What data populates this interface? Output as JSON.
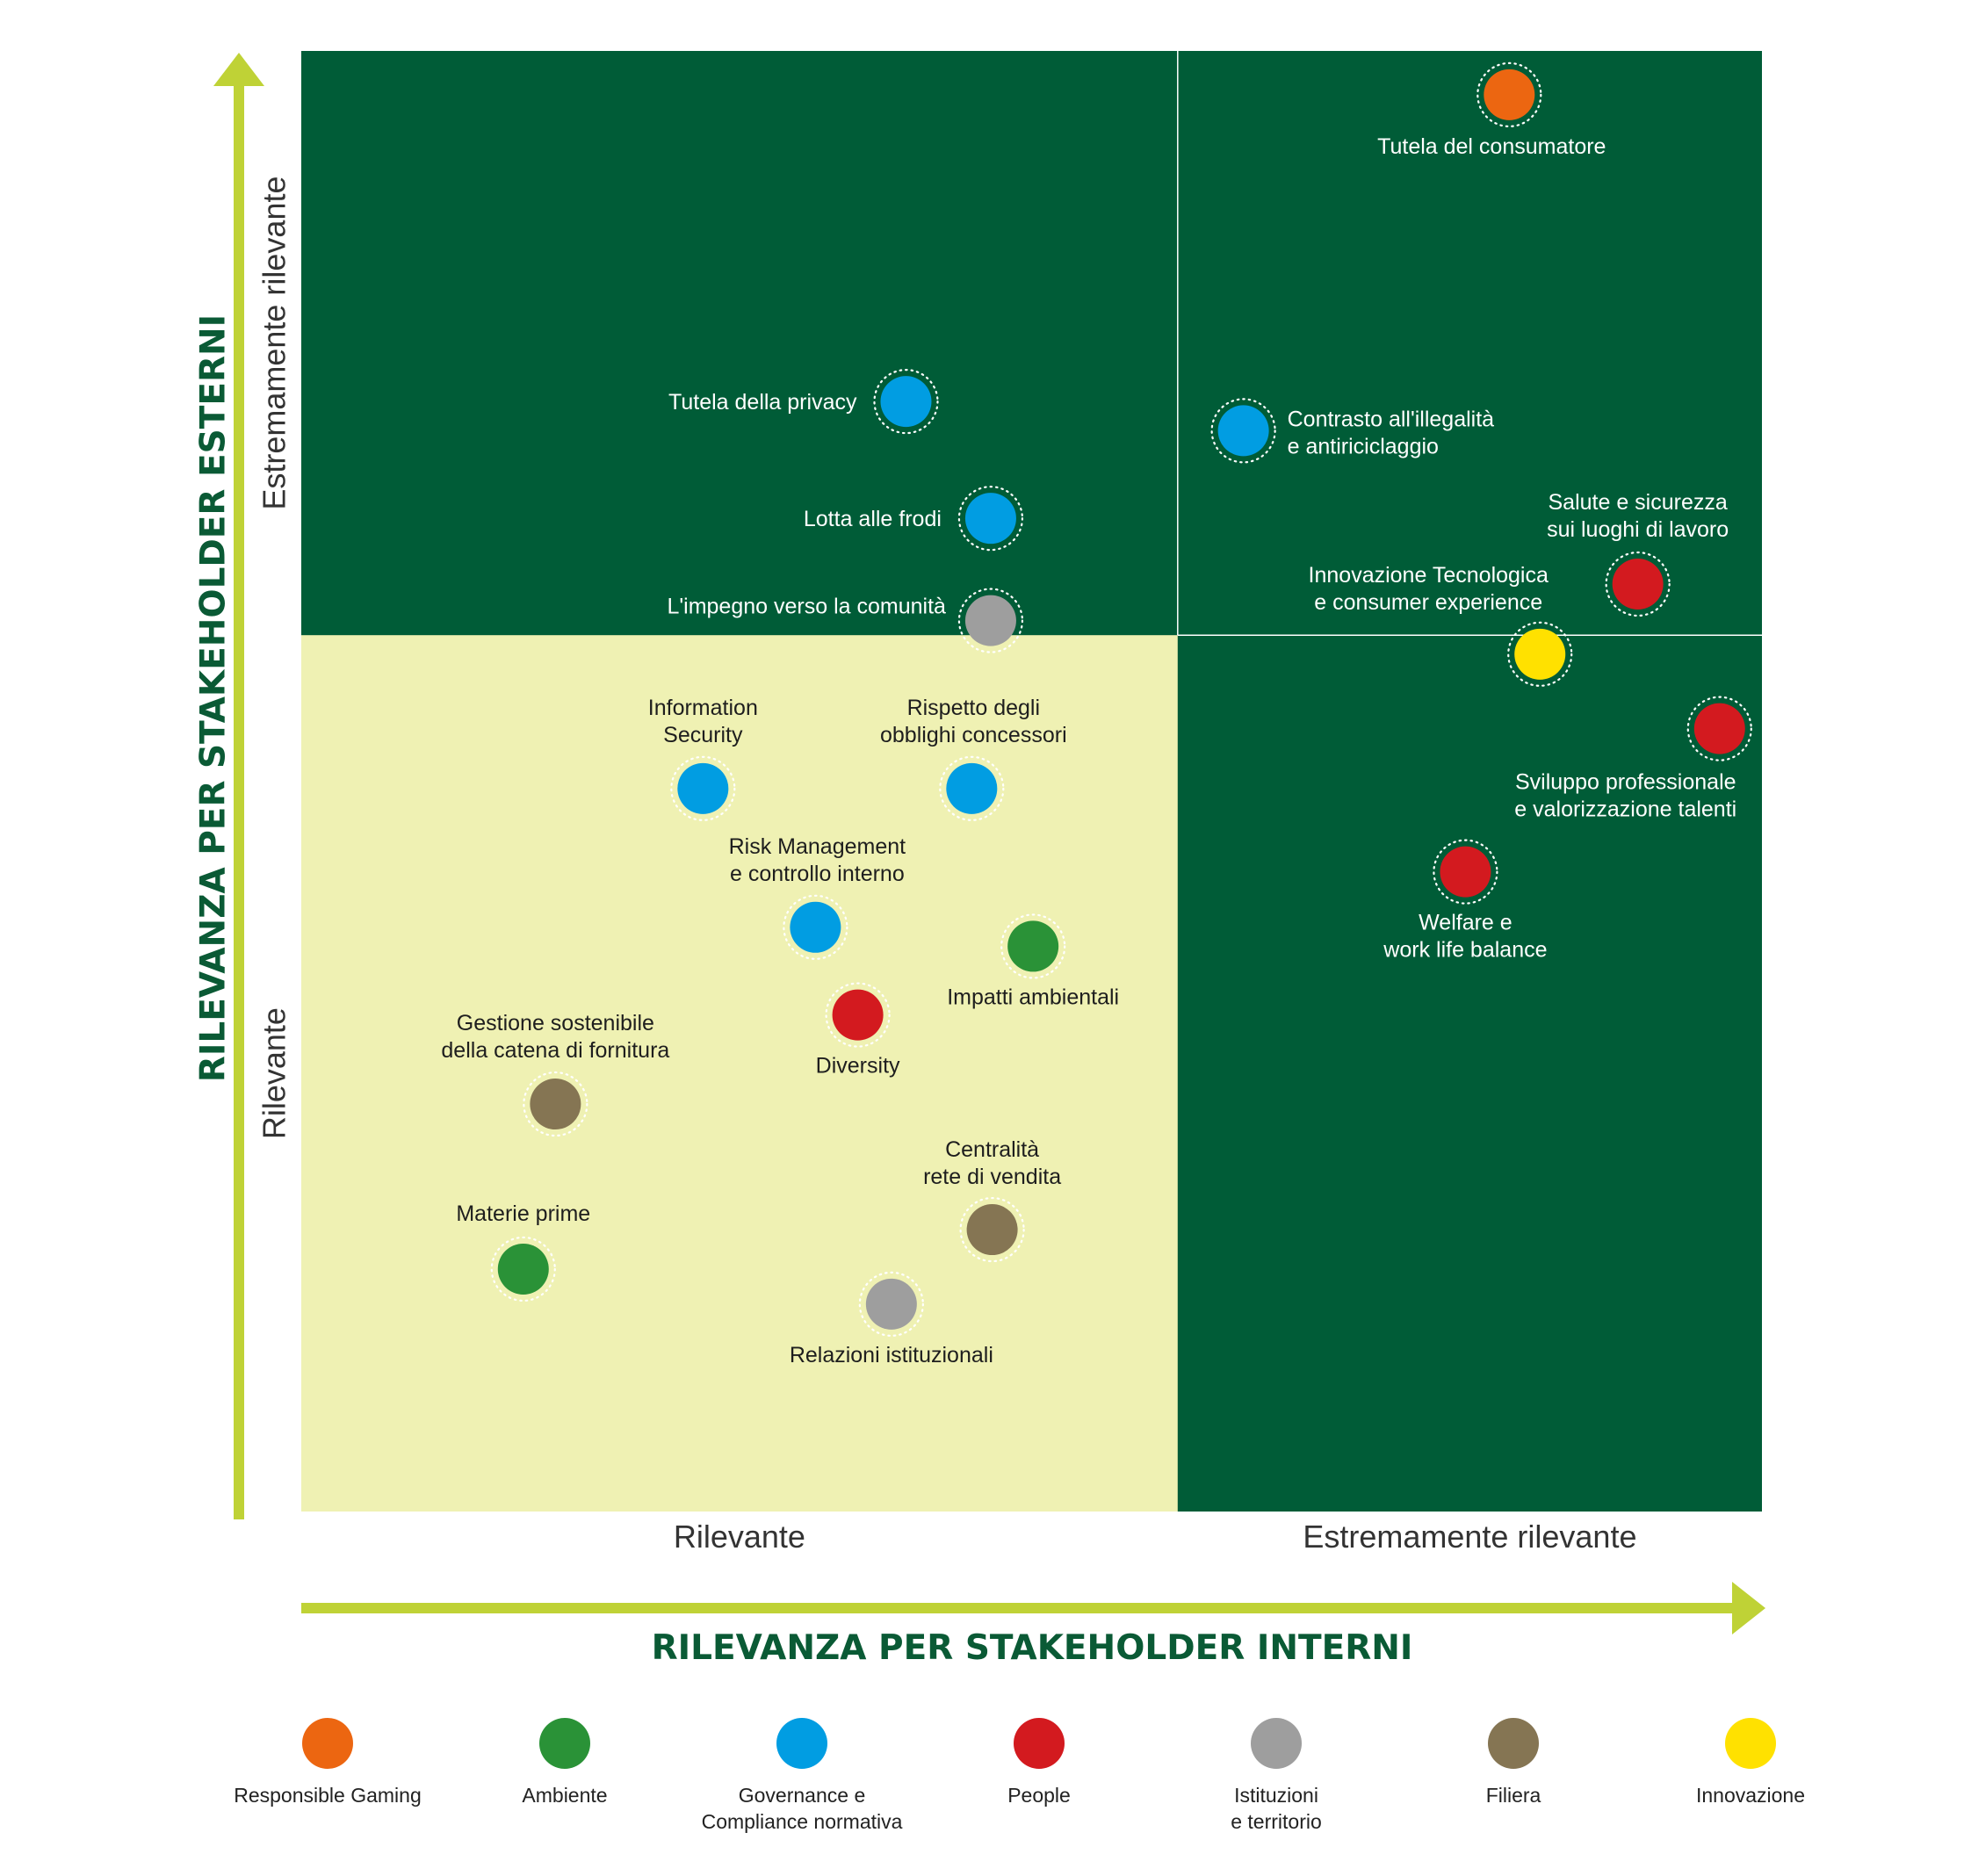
{
  "chart_data": {
    "type": "scatter",
    "xlabel": "RILEVANZA PER STAKEHOLDER INTERNI",
    "ylabel": "RILEVANZA PER STAKEHOLDER ESTERNI",
    "x_ticks": [
      "Rilevante",
      "Estremamente rilevante"
    ],
    "y_ticks": [
      "Rilevante",
      "Estremamente rilevante"
    ],
    "xlim": [
      0,
      1
    ],
    "ylim": [
      0,
      1
    ],
    "quadrant_split": {
      "x": 0.6,
      "y": 0.6
    },
    "colors": {
      "dark_green": "#005c37",
      "light_yellow": "#eff1b3",
      "axis_arrow": "#bfd236",
      "title": "#0a5a35"
    },
    "categories": [
      {
        "name": "Responsible Gaming",
        "color": "#ec6611"
      },
      {
        "name": "Ambiente",
        "color": "#2a9237"
      },
      {
        "name": "Governance e Compliance normativa",
        "color": "#019de2"
      },
      {
        "name": "People",
        "color": "#d31a1f"
      },
      {
        "name": "Istituzioni e territorio",
        "color": "#9e9e9e"
      },
      {
        "name": "Filiera",
        "color": "#857553"
      },
      {
        "name": "Innovazione",
        "color": "#ffe100"
      }
    ],
    "points": [
      {
        "label": "Tutela del consumatore",
        "category": "Responsible Gaming",
        "x": 0.827,
        "y": 0.97
      },
      {
        "label": "Tutela della privacy",
        "category": "Governance e Compliance normativa",
        "x": 0.414,
        "y": 0.76
      },
      {
        "label": "Contrasto all'illegalità e antiriciclaggio",
        "category": "Governance e Compliance normativa",
        "x": 0.645,
        "y": 0.74
      },
      {
        "label": "Lotta alle frodi",
        "category": "Governance e Compliance normativa",
        "x": 0.472,
        "y": 0.68
      },
      {
        "label": "Salute e sicurezza sui luoghi di lavoro",
        "category": "People",
        "x": 0.915,
        "y": 0.635
      },
      {
        "label": "L'impegno verso la comunità",
        "category": "Istituzioni e territorio",
        "x": 0.472,
        "y": 0.61
      },
      {
        "label": "Innovazione Tecnologica e consumer experience",
        "category": "Innovazione",
        "x": 0.848,
        "y": 0.587
      },
      {
        "label": "Sviluppo professionale e valorizzazione talenti",
        "category": "People",
        "x": 0.971,
        "y": 0.536
      },
      {
        "label": "Information Security",
        "category": "Governance e Compliance normativa",
        "x": 0.275,
        "y": 0.495
      },
      {
        "label": "Rispetto degli obblighi concessori",
        "category": "Governance e Compliance normativa",
        "x": 0.459,
        "y": 0.495
      },
      {
        "label": "Welfare e work life balance",
        "category": "People",
        "x": 0.797,
        "y": 0.438
      },
      {
        "label": "Risk Management e controllo interno",
        "category": "Governance e Compliance normativa",
        "x": 0.352,
        "y": 0.4
      },
      {
        "label": "Impatti ambientali",
        "category": "Ambiente",
        "x": 0.501,
        "y": 0.387
      },
      {
        "label": "Diversity",
        "category": "People",
        "x": 0.381,
        "y": 0.34
      },
      {
        "label": "Gestione sostenibile della catena di fornitura",
        "category": "Filiera",
        "x": 0.174,
        "y": 0.279
      },
      {
        "label": "Centralità rete di vendita",
        "category": "Filiera",
        "x": 0.473,
        "y": 0.193
      },
      {
        "label": "Materie prime",
        "category": "Ambiente",
        "x": 0.152,
        "y": 0.166
      },
      {
        "label": "Relazioni istituzionali",
        "category": "Istituzioni e territorio",
        "x": 0.404,
        "y": 0.142
      }
    ]
  },
  "legend": [
    {
      "color": "#ec6611",
      "lines": [
        "Responsible Gaming"
      ]
    },
    {
      "color": "#2a9237",
      "lines": [
        "Ambiente"
      ]
    },
    {
      "color": "#019de2",
      "lines": [
        "Governance e",
        "Compliance normativa"
      ]
    },
    {
      "color": "#d31a1f",
      "lines": [
        "People"
      ]
    },
    {
      "color": "#9e9e9e",
      "lines": [
        "Istituzioni",
        "e territorio"
      ]
    },
    {
      "color": "#857553",
      "lines": [
        "Filiera"
      ]
    },
    {
      "color": "#ffe100",
      "lines": [
        "Innovazione"
      ]
    }
  ],
  "point_labels": [
    {
      "lines": [
        "Tutela del consumatore"
      ]
    },
    {
      "lines": [
        "Tutela della privacy"
      ]
    },
    {
      "lines": [
        "Contrasto all'illegalità",
        "e antiriciclaggio"
      ]
    },
    {
      "lines": [
        "Lotta alle frodi"
      ]
    },
    {
      "lines": [
        "Salute e sicurezza",
        "sui luoghi di lavoro"
      ]
    },
    {
      "lines": [
        "L'impegno verso la comunità"
      ]
    },
    {
      "lines": [
        "Innovazione Tecnologica",
        "e consumer experience"
      ]
    },
    {
      "lines": [
        "Sviluppo professionale",
        "e valorizzazione talenti"
      ]
    },
    {
      "lines": [
        "Information",
        "Security"
      ]
    },
    {
      "lines": [
        "Rispetto degli",
        "obblighi concessori"
      ]
    },
    {
      "lines": [
        "Welfare e",
        "work life balance"
      ]
    },
    {
      "lines": [
        "Risk Management",
        "e controllo interno"
      ]
    },
    {
      "lines": [
        "Impatti ambientali"
      ]
    },
    {
      "lines": [
        "Diversity"
      ]
    },
    {
      "lines": [
        "Gestione sostenibile",
        "della catena di fornitura"
      ]
    },
    {
      "lines": [
        "Centralità",
        "rete di vendita"
      ]
    },
    {
      "lines": [
        "Materie prime"
      ]
    },
    {
      "lines": [
        "Relazioni istituzionali"
      ]
    }
  ]
}
